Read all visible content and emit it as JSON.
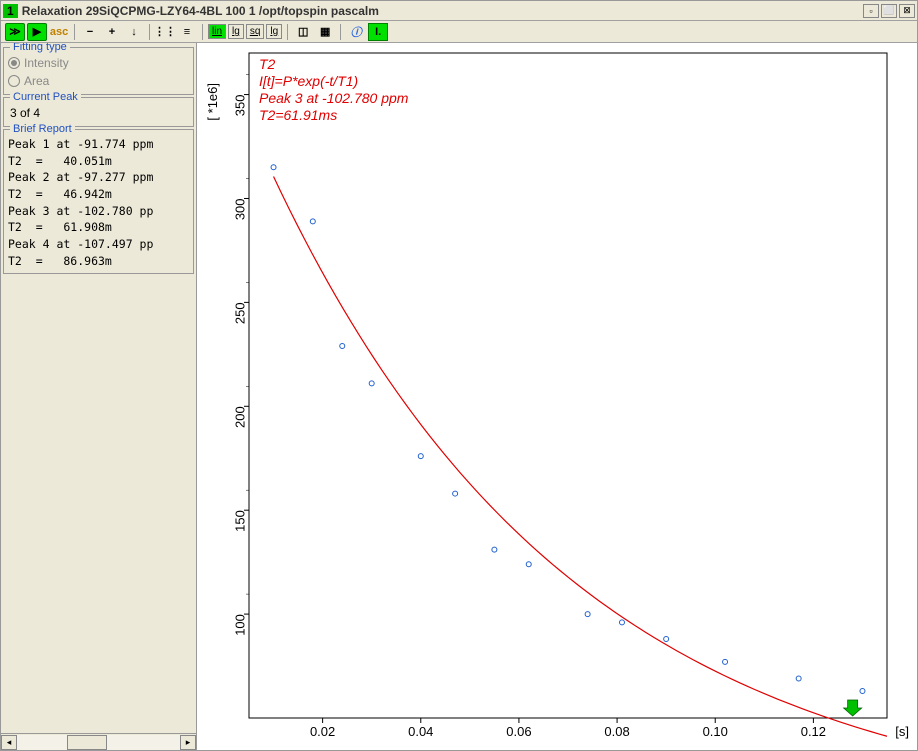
{
  "window": {
    "number": "1",
    "title": "Relaxation 29SiQCPMG-LZY64-4BL  100  1  /opt/topspin  pascalm"
  },
  "toolbar": {
    "btns_group1": [
      "≫",
      "▶",
      "asc"
    ],
    "btns_group2": [
      "−",
      "+",
      "↓"
    ],
    "scale_btns": [
      "lin",
      "lg",
      "sq",
      "lg"
    ]
  },
  "sidebar": {
    "fitting_type": {
      "title": "Fitting type",
      "options": [
        {
          "label": "Intensity",
          "checked": true
        },
        {
          "label": "Area",
          "checked": false
        }
      ]
    },
    "current_peak": {
      "title": "Current Peak",
      "value": "3 of 4"
    },
    "brief_report": {
      "title": "Brief Report",
      "text": "Peak 1 at -91.774 ppm\nT2  =   40.051m\nPeak 2 at -97.277 ppm\nT2  =   46.942m\nPeak 3 at -102.780 pp\nT2  =   61.908m\nPeak 4 at -107.497 pp\nT2  =   86.963m"
    }
  },
  "chart": {
    "type": "scatter-with-fit",
    "annotation_lines": [
      "T2",
      "I[t]=P*exp(-t/T1)",
      "Peak 3 at -102.780 ppm",
      "T2=61.91ms"
    ],
    "annotation_color": "#e00000",
    "y_axis_label": "[ *1e6]",
    "x_axis_label": "[s]",
    "x_ticks": [
      0.02,
      0.04,
      0.06,
      0.08,
      0.1,
      0.12
    ],
    "y_ticks": [
      100,
      150,
      200,
      250,
      300,
      350
    ],
    "xlim": [
      0.005,
      0.135
    ],
    "ylim": [
      50,
      370
    ],
    "data_points": [
      {
        "x": 0.01,
        "y": 315
      },
      {
        "x": 0.018,
        "y": 289
      },
      {
        "x": 0.024,
        "y": 229
      },
      {
        "x": 0.03,
        "y": 211
      },
      {
        "x": 0.04,
        "y": 176
      },
      {
        "x": 0.047,
        "y": 158
      },
      {
        "x": 0.055,
        "y": 131
      },
      {
        "x": 0.062,
        "y": 124
      },
      {
        "x": 0.074,
        "y": 100
      },
      {
        "x": 0.081,
        "y": 96
      },
      {
        "x": 0.09,
        "y": 88
      },
      {
        "x": 0.102,
        "y": 77
      },
      {
        "x": 0.117,
        "y": 69
      },
      {
        "x": 0.13,
        "y": 63
      }
    ],
    "fit_curve": {
      "P": 365,
      "T1": 0.0619,
      "x_start": 0.01,
      "x_end": 0.135,
      "n_points": 80
    },
    "point_color": "#2060d0",
    "fit_color": "#e00000",
    "background_color": "#ffffff",
    "marker_radius": 2.5,
    "line_width": 1.2,
    "cursor_arrow": {
      "x": 0.128,
      "color": "#00c000"
    }
  }
}
